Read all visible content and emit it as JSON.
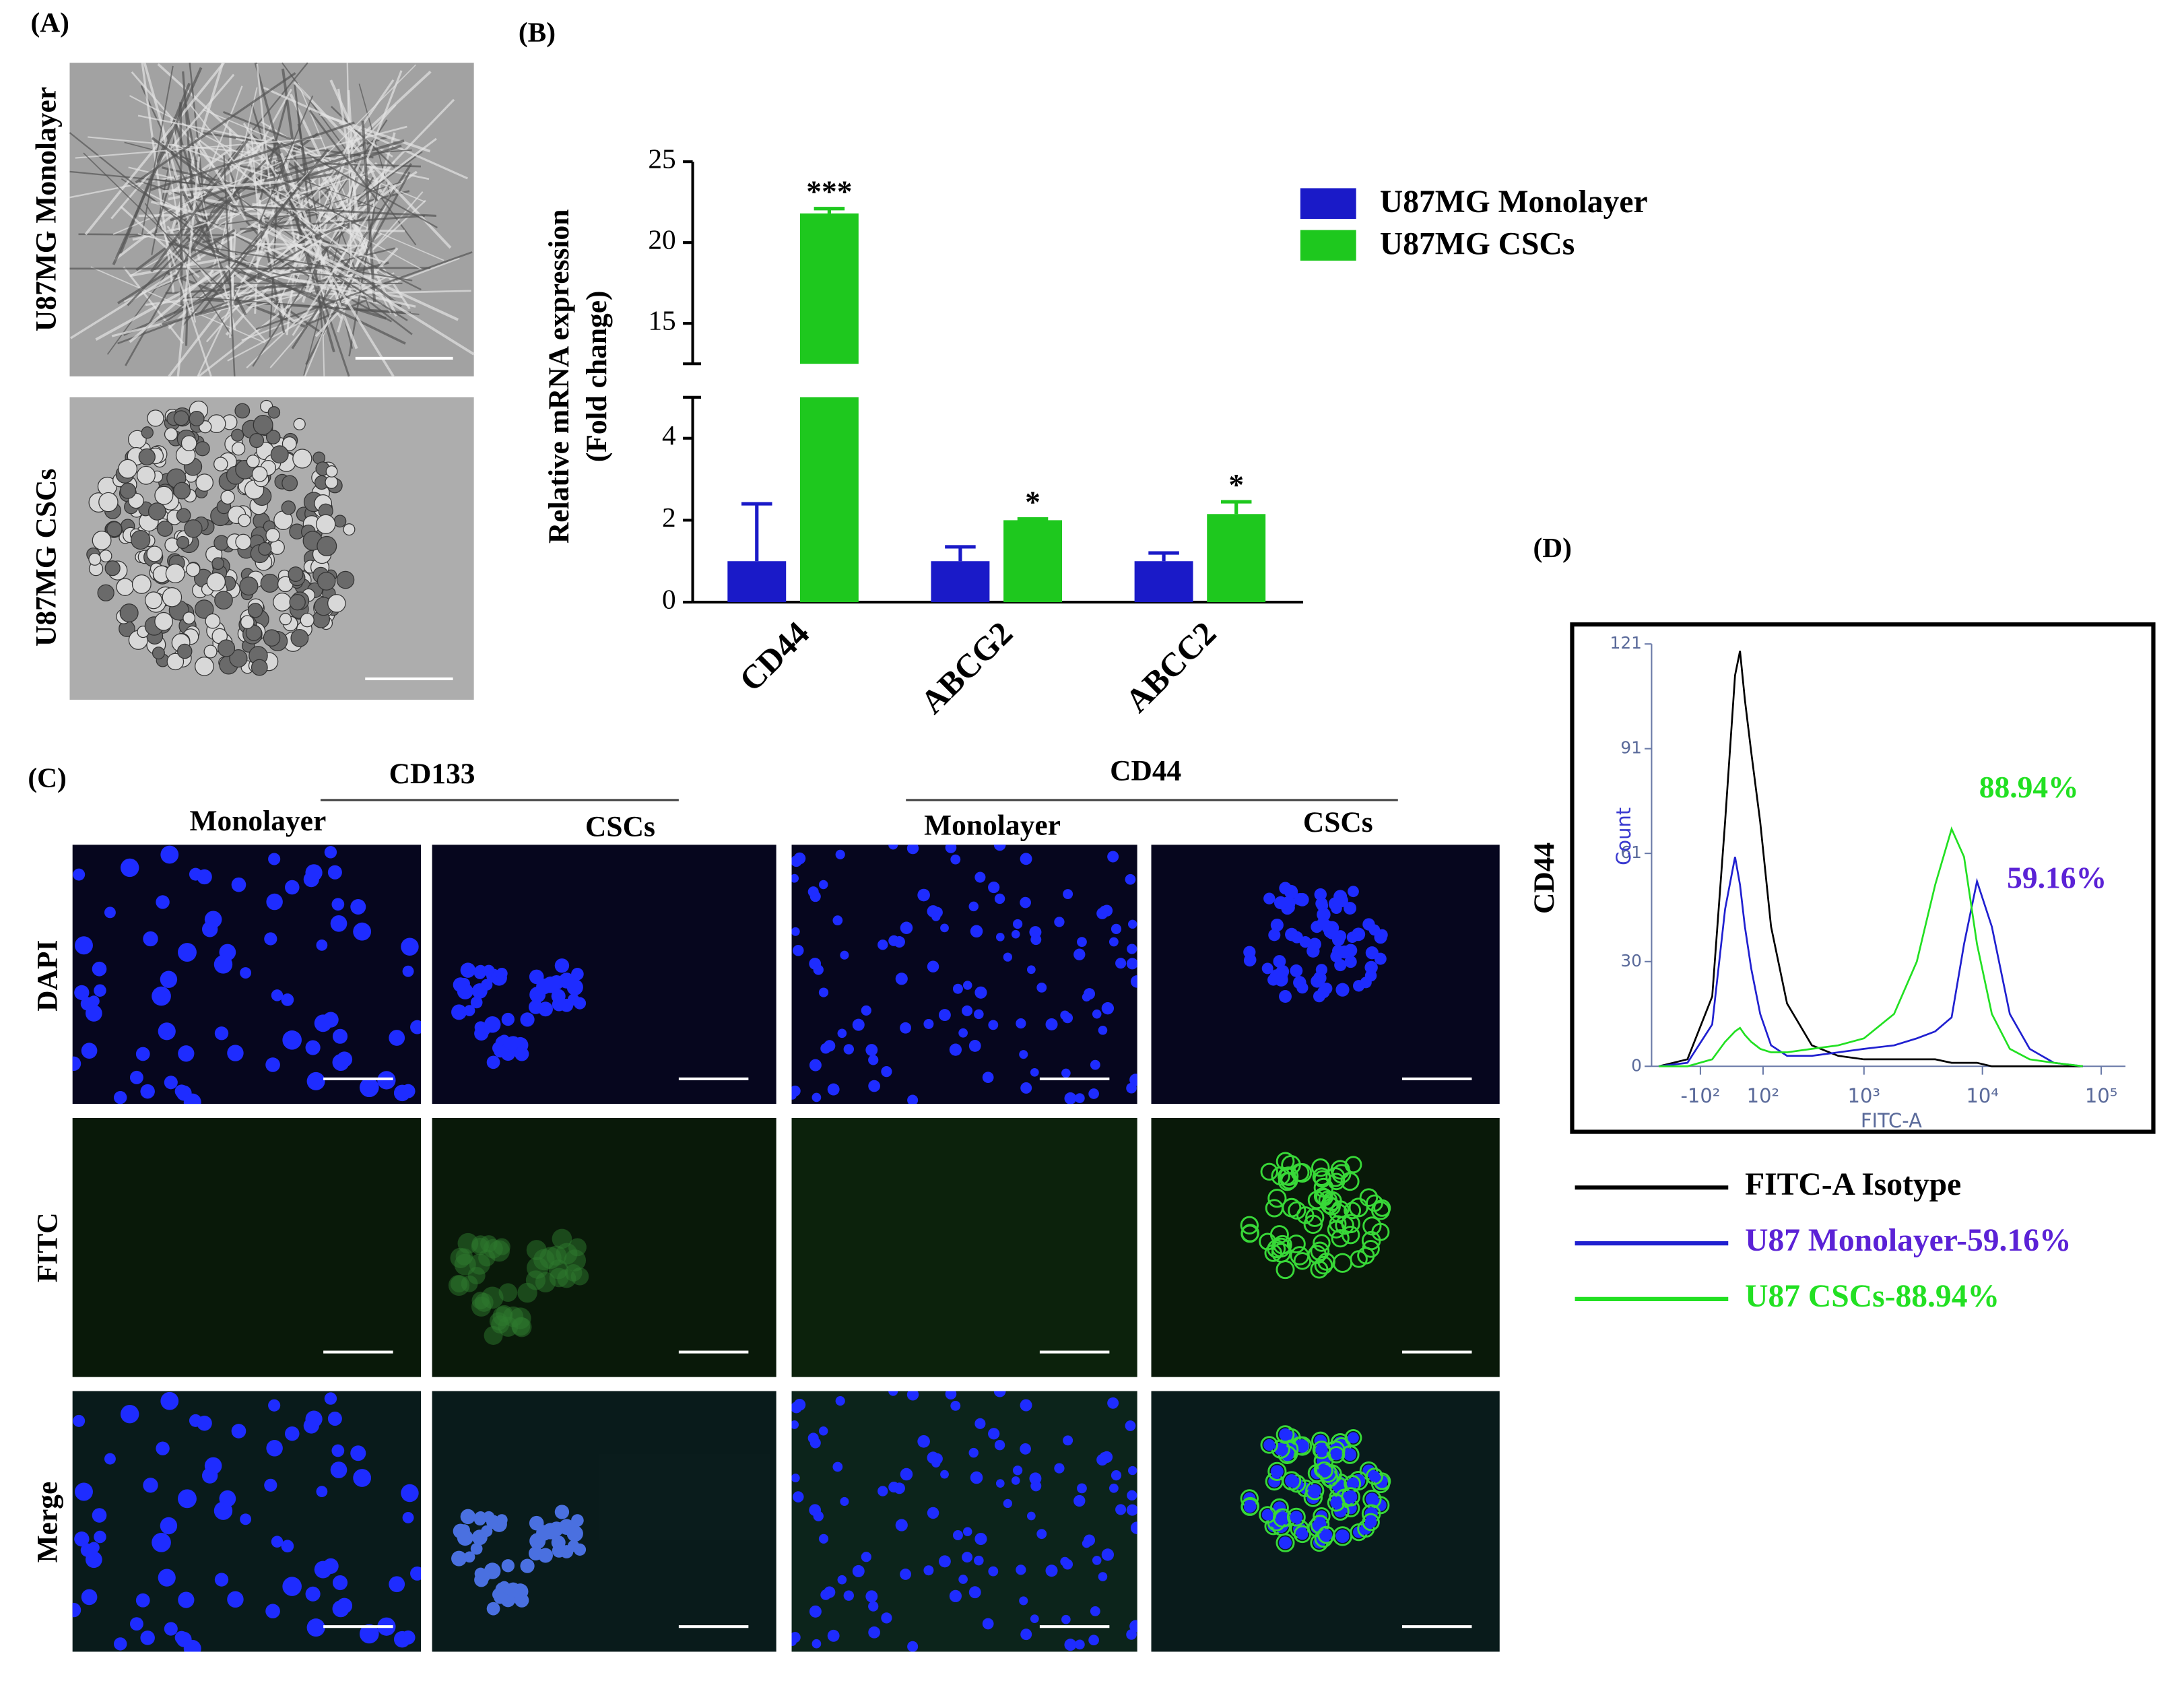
{
  "panel_labels": [
    "(A)",
    "(B)",
    "(C)",
    "(D)"
  ],
  "panel_a": {
    "row_labels": [
      "U87MG Monolayer",
      "U87MG CSCs"
    ]
  },
  "panel_c": {
    "groups": [
      "CD133",
      "CD44"
    ],
    "columns": [
      "Monolayer",
      "CSCs",
      "Monolayer",
      "CSCs"
    ],
    "rows": [
      "DAPI",
      "FITC",
      "Merge"
    ]
  },
  "chart_data": [
    {
      "type": "bar",
      "y_label": [
        "Relative mRNA expression",
        "(Fold change)"
      ],
      "categories": [
        "CD44",
        "ABCG2",
        "ABCC2"
      ],
      "series": [
        {
          "name": "U87MG Monolayer",
          "color": "#1a1ac8",
          "values": [
            1,
            1,
            1
          ],
          "errors": [
            1.4,
            0.35,
            0.2
          ]
        },
        {
          "name": "U87MG CSCs",
          "color": "#1ec81e",
          "values": [
            21.8,
            2,
            2.15
          ],
          "errors": [
            0.3,
            0.03,
            0.3
          ],
          "annotations": [
            "***",
            "*",
            "*"
          ]
        }
      ],
      "ylim": [
        0,
        25
      ],
      "yticks": [
        0,
        2,
        4,
        15,
        20,
        25
      ],
      "axis_break": [
        5,
        12.5
      ]
    },
    {
      "type": "line",
      "axis_title": "CD44",
      "x_label": "FITC-A",
      "y_label": "Count",
      "x_scale": "biexponential",
      "x": [
        -300,
        -150,
        -60,
        -20,
        10,
        25,
        40,
        60,
        90,
        130,
        200,
        350,
        600,
        1000,
        1800,
        2800,
        4000,
        5500,
        7000,
        9000,
        12000,
        17000,
        25000,
        40000,
        70000
      ],
      "xlim": [
        -350,
        160000
      ],
      "xticks": [
        {
          "value": -100,
          "label": "-10²"
        },
        {
          "value": 100,
          "label": "10²"
        },
        {
          "value": 1000,
          "label": "10³"
        },
        {
          "value": 10000,
          "label": "10⁴"
        },
        {
          "value": 100000,
          "label": "10⁵"
        }
      ],
      "ylim": [
        0,
        121
      ],
      "yticks": [
        0,
        30,
        61,
        91,
        121
      ],
      "series": [
        {
          "name": "FITC-A Isotype",
          "color": "#000000",
          "values": [
            0,
            2,
            20,
            70,
            112,
            119,
            105,
            90,
            70,
            40,
            18,
            6,
            3,
            2,
            2,
            2,
            2,
            1,
            1,
            1,
            0,
            0,
            0,
            0,
            0
          ]
        },
        {
          "name": "U87 Monolayer-59.16%",
          "color": "#2020d0",
          "label_color": "#5b22d6",
          "annotation": "59.16%",
          "values": [
            0,
            1,
            12,
            45,
            60,
            52,
            40,
            28,
            15,
            6,
            3,
            3,
            4,
            5,
            6,
            8,
            10,
            14,
            35,
            53,
            40,
            15,
            5,
            1,
            0
          ]
        },
        {
          "name": "U87 CSCs-88.94%",
          "color": "#22e022",
          "annotation": "88.94%",
          "values": [
            0,
            0,
            2,
            7,
            10,
            11,
            9,
            7,
            5,
            4,
            4,
            5,
            6,
            8,
            15,
            30,
            52,
            68,
            60,
            35,
            15,
            5,
            2,
            1,
            0
          ]
        }
      ]
    }
  ]
}
